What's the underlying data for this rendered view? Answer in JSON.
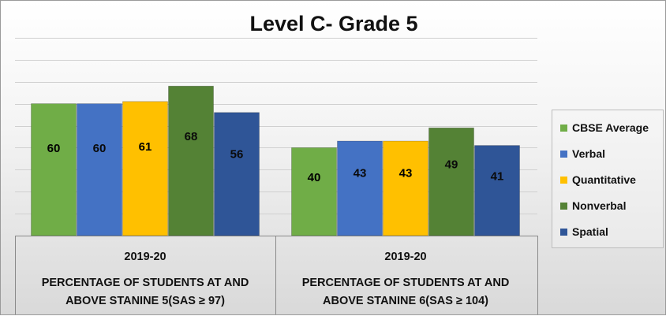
{
  "chart_data": {
    "type": "bar",
    "title": "Level C- Grade 5",
    "groups": [
      {
        "year": "2019-20",
        "label_line1": "PERCENTAGE OF STUDENTS AT AND",
        "label_line2": "ABOVE STANINE 5(SAS ≥ 97)"
      },
      {
        "year": "2019-20",
        "label_line1": "PERCENTAGE OF STUDENTS AT AND",
        "label_line2": "ABOVE STANINE 6(SAS ≥ 104)"
      }
    ],
    "series": [
      {
        "name": "CBSE Average",
        "color": "#70ad47",
        "values": [
          60,
          40
        ]
      },
      {
        "name": "Verbal",
        "color": "#4472c4",
        "values": [
          60,
          43
        ]
      },
      {
        "name": "Quantitative",
        "color": "#ffc000",
        "values": [
          61,
          43
        ]
      },
      {
        "name": "Nonverbal",
        "color": "#548235",
        "values": [
          68,
          49
        ]
      },
      {
        "name": "Spatial",
        "color": "#2f5597",
        "values": [
          56,
          41
        ]
      }
    ],
    "ylim": [
      0,
      100
    ],
    "grid": true,
    "legend_position": "right"
  }
}
